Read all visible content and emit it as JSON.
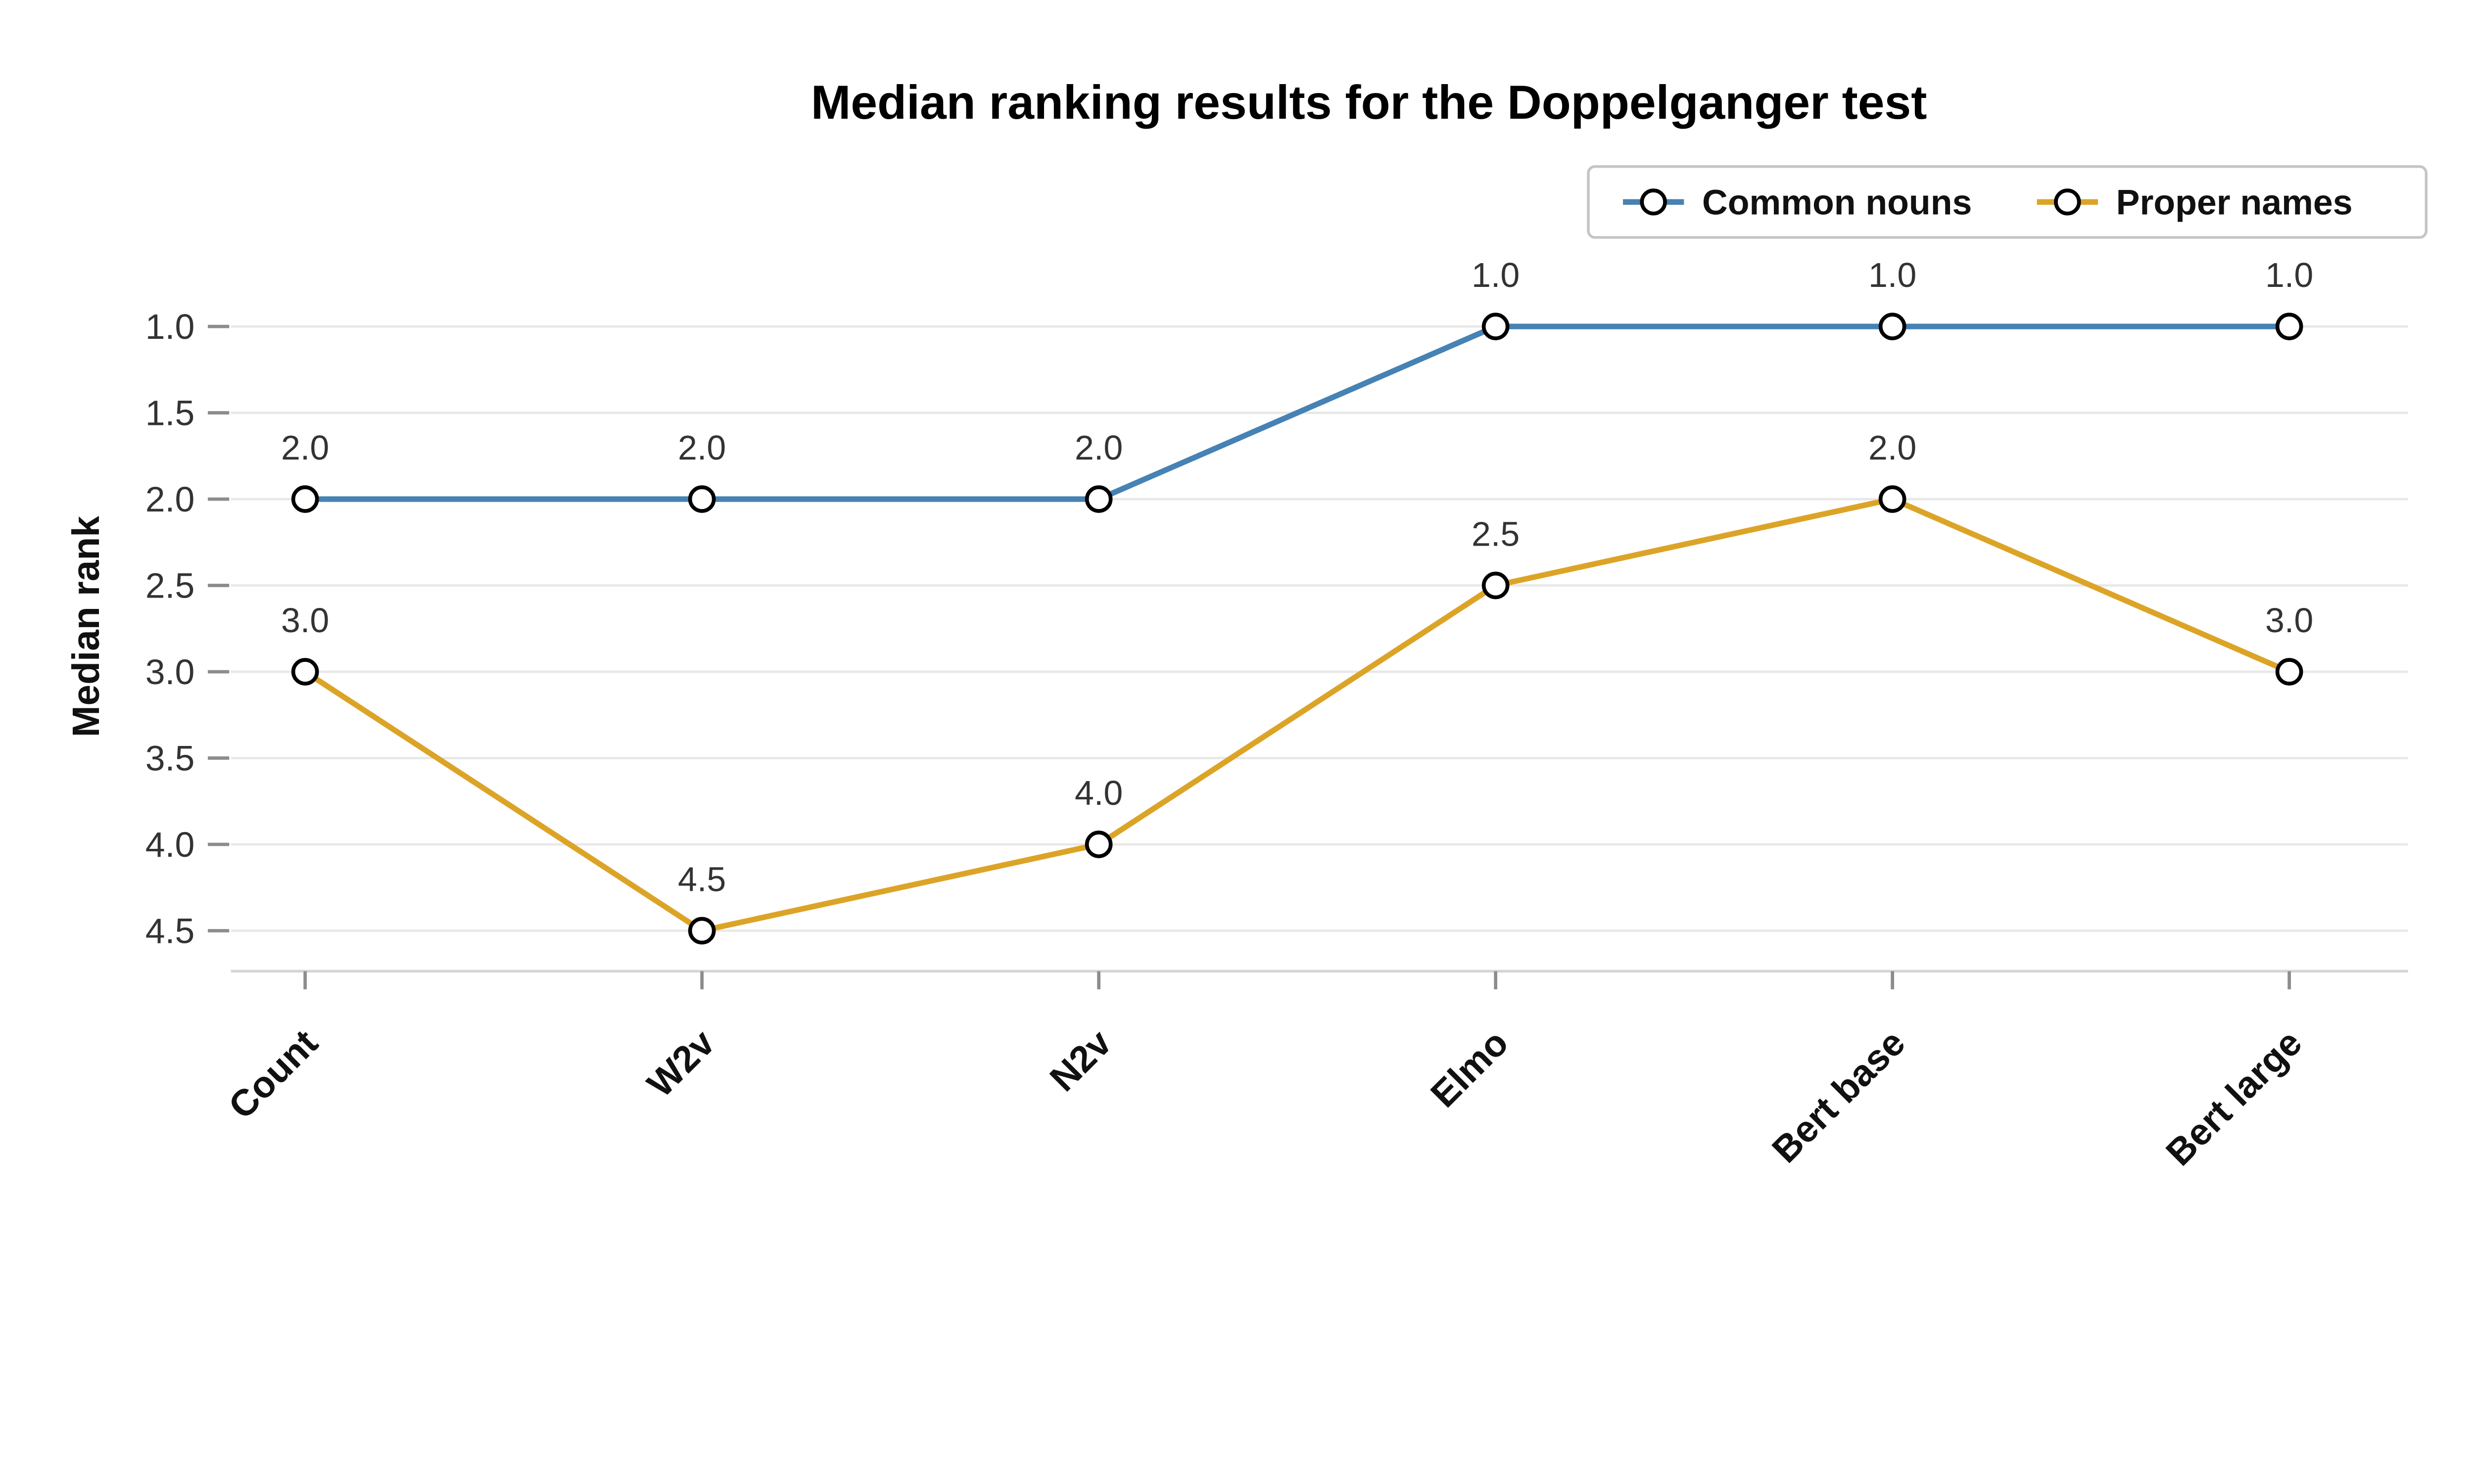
{
  "chart_data": {
    "type": "line",
    "title": "Median ranking results for the Doppelganger test",
    "xlabel": "",
    "ylabel": "Median rank",
    "categories": [
      "Count",
      "W2v",
      "N2v",
      "Elmo",
      "Bert base",
      "Bert large"
    ],
    "series": [
      {
        "name": "Common nouns",
        "color": "#4682B4",
        "values": [
          2.0,
          2.0,
          2.0,
          1.0,
          1.0,
          1.0
        ]
      },
      {
        "name": "Proper names",
        "color": "#DCA427",
        "values": [
          3.0,
          4.5,
          4.0,
          2.5,
          2.0,
          3.0
        ]
      }
    ],
    "y_axis": {
      "range": [
        1.0,
        4.5
      ],
      "ticks": [
        1.0,
        1.5,
        2.0,
        2.5,
        3.0,
        3.5,
        4.0,
        4.5
      ],
      "inverted": true,
      "tick_format": "one_decimal"
    },
    "x_axis": {
      "label_rotation_deg": 45
    },
    "data_labels_shown": true,
    "grid": "horizontal",
    "legend": {
      "position": "top-right",
      "bordered": true,
      "entries": [
        "Common nouns",
        "Proper names"
      ]
    },
    "marker": {
      "shape": "open-circle",
      "fill": "#ffffff",
      "stroke": "#000000"
    }
  },
  "colors": {
    "background": "#ffffff",
    "grid": "#e8e8e8",
    "axis": "#d4d4d4",
    "tick": "#8c8c8c",
    "tick_label": "#333333",
    "data_label": "#333333",
    "legend_border": "#c4c4c4",
    "title": "#000000"
  }
}
